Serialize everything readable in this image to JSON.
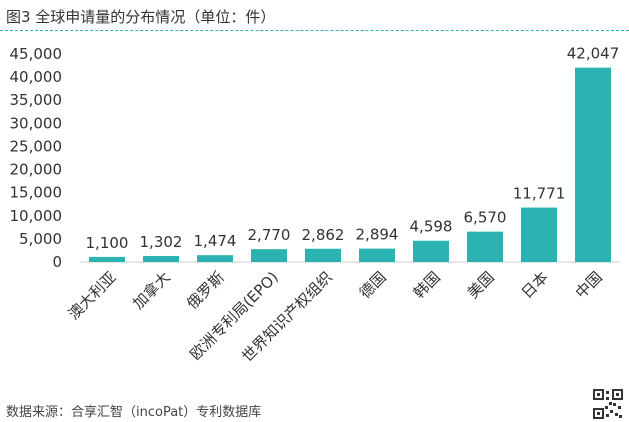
{
  "title": "图3 全球申请量的分布情况（单位：件）",
  "source": "数据来源：合享汇智（incoPat）专利数据库",
  "colors": {
    "bar": "#2bb3b1",
    "rule": "#2bb3b1",
    "text": "#333333",
    "axis": "#cccccc"
  },
  "chart_data": {
    "type": "bar",
    "categories": [
      "澳大利亚",
      "加拿大",
      "俄罗斯",
      "欧洲专利局(EPO)",
      "世界知识产权组织",
      "德国",
      "韩国",
      "美国",
      "日本",
      "中国"
    ],
    "values": [
      1100,
      1302,
      1474,
      2770,
      2862,
      2894,
      4598,
      6570,
      11771,
      42047
    ],
    "data_labels": [
      "1,100",
      "1,302",
      "1,474",
      "2,770",
      "2,862",
      "2,894",
      "4,598",
      "6,570",
      "11,771",
      "42,047"
    ],
    "y_ticks": [
      0,
      5000,
      10000,
      15000,
      20000,
      25000,
      30000,
      35000,
      40000,
      45000
    ],
    "y_tick_labels": [
      "0",
      "5,000",
      "10,000",
      "15,000",
      "20,000",
      "25,000",
      "30,000",
      "35,000",
      "40,000",
      "45,000"
    ],
    "ylim": [
      0,
      45000
    ],
    "grid": false,
    "legend": "none"
  }
}
